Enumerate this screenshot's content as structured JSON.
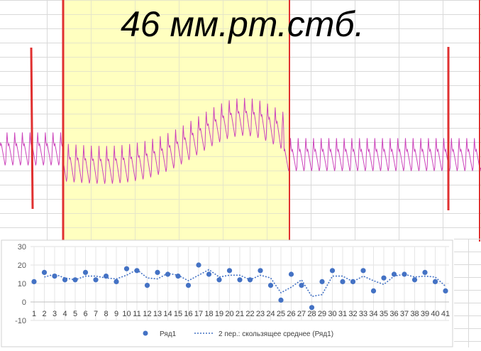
{
  "headline": "46 мм.рт.стб.",
  "colors": {
    "trace": "#cc44bb",
    "marker_line": "#e03030",
    "highlight": "#ffffc0",
    "grid": "#d9d9d9",
    "series": "#4472c4"
  },
  "chart_data": {
    "type": "scatter",
    "x": [
      1,
      2,
      3,
      4,
      5,
      6,
      7,
      8,
      9,
      10,
      11,
      12,
      13,
      14,
      15,
      16,
      17,
      18,
      19,
      20,
      21,
      22,
      23,
      24,
      25,
      26,
      27,
      28,
      29,
      30,
      31,
      32,
      33,
      34,
      35,
      36,
      37,
      38,
      39,
      40,
      41
    ],
    "series": [
      {
        "name": "Ряд1",
        "values": [
          11,
          16,
          14,
          12,
          12,
          16,
          12,
          14,
          11,
          18,
          17,
          9,
          16,
          15,
          14,
          9,
          20,
          15,
          12,
          17,
          12,
          12,
          17,
          9,
          1,
          15,
          9,
          -3,
          11,
          17,
          11,
          11,
          17,
          6,
          13,
          15,
          15,
          12,
          16,
          11,
          6
        ]
      }
    ],
    "trendline": {
      "name": "2 пер.: скользящее среднее (Ряд1)",
      "type": "moving_average",
      "period": 2
    },
    "ylim": [
      -10,
      30
    ],
    "yticks": [
      "30",
      "20",
      "10",
      "0",
      "-10"
    ],
    "xticks": [
      "1",
      "2",
      "3",
      "4",
      "5",
      "6",
      "7",
      "8",
      "9",
      "10",
      "11",
      "12",
      "13",
      "14",
      "15",
      "16",
      "17",
      "18",
      "19",
      "20",
      "21",
      "22",
      "23",
      "24",
      "25",
      "26",
      "27",
      "28",
      "29",
      "30",
      "31",
      "32",
      "33",
      "34",
      "35",
      "36",
      "37",
      "38",
      "39",
      "40",
      "41"
    ],
    "legend": [
      "Ряд1",
      "2 пер.: скользящее среднее (Ряд1)"
    ],
    "legend_position": "bottom",
    "grid": true
  }
}
